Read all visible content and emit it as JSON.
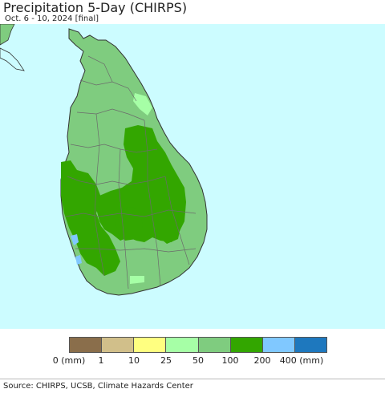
{
  "header": {
    "title": "Precipitation 5-Day (CHIRPS)",
    "subtitle": "Oct. 6 - 10, 2024 [final]"
  },
  "map": {
    "colors": {
      "ocean": "#ccfcff",
      "land_50_100": "#7fcc7f",
      "land_100_200": "#33a600",
      "land_25_50": "#a6ffa6",
      "land_200_400": "#80c8ff",
      "border": "#666666"
    }
  },
  "legend": {
    "colors": [
      "#8a6e4b",
      "#d1bf8a",
      "#ffff80",
      "#a6ffa6",
      "#7fcc7f",
      "#33a600",
      "#80c8ff",
      "#1e78be"
    ],
    "labels": [
      "0 (mm)",
      "1",
      "10",
      "25",
      "50",
      "100",
      "200",
      "400 (mm)"
    ]
  },
  "footer": {
    "source": "Source: CHIRPS, UCSB, Climate Hazards Center"
  }
}
